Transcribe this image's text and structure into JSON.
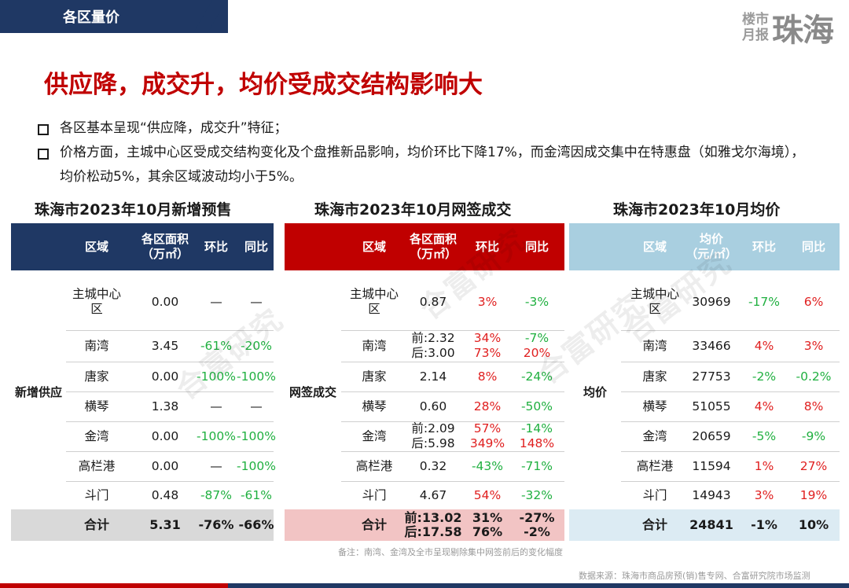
{
  "header": {
    "section": "各区量价",
    "brand_small_1": "楼市",
    "brand_small_2": "月报",
    "brand_big": "珠海"
  },
  "title": "供应降，成交升，均价受成交结构影响大",
  "bullets": [
    "各区基本呈现“供应降，成交升”特征；",
    "价格方面，主城中心区受成交结构变化及个盘推新品影响，均价环比下降17%，而金湾因成交集中在特惠盘（如雅戈尔海境），均价松动5%，其余区域波动均小于5%。"
  ],
  "tables": {
    "supply": {
      "title": "珠海市2023年10月新增预售",
      "headers": [
        "区域",
        "各区面积\n（万㎡）",
        "环比",
        "同比"
      ],
      "side_label": "新增供应",
      "rows": [
        {
          "area": "主城中心\n区",
          "value": "0.00",
          "mom": "—",
          "yoy": "—",
          "mom_c": "",
          "yoy_c": ""
        },
        {
          "area": "南湾",
          "value": "3.45",
          "mom": "-61%",
          "yoy": "-20%",
          "mom_c": "green",
          "yoy_c": "green"
        },
        {
          "area": "唐家",
          "value": "0.00",
          "mom": "-100%",
          "yoy": "-100%",
          "mom_c": "green",
          "yoy_c": "green"
        },
        {
          "area": "横琴",
          "value": "1.38",
          "mom": "—",
          "yoy": "—",
          "mom_c": "",
          "yoy_c": ""
        },
        {
          "area": "金湾",
          "value": "0.00",
          "mom": "-100%",
          "yoy": "-100%",
          "mom_c": "green",
          "yoy_c": "green"
        },
        {
          "area": "高栏港",
          "value": "0.00",
          "mom": "—",
          "yoy": "-100%",
          "mom_c": "",
          "yoy_c": "green"
        },
        {
          "area": "斗门",
          "value": "0.48",
          "mom": "-87%",
          "yoy": "-61%",
          "mom_c": "green",
          "yoy_c": "green"
        }
      ],
      "total": {
        "label": "合计",
        "value": "5.31",
        "mom": "-76%",
        "yoy": "-66%"
      }
    },
    "sales": {
      "title": "珠海市2023年10月网签成交",
      "headers": [
        "区域",
        "各区面积\n（万㎡）",
        "环比",
        "同比"
      ],
      "side_label": "网签成交",
      "rows": [
        {
          "area": "主城中心\n区",
          "value": "0.87",
          "mom": "3%",
          "yoy": "-3%",
          "mom_c": "red",
          "yoy_c": "green"
        },
        {
          "area": "南湾",
          "value": "前:2.32\n后:3.00",
          "mom": "34%\n73%",
          "yoy": "-7%\n20%",
          "mom_c": "red",
          "yoy_c": "mixed1"
        },
        {
          "area": "唐家",
          "value": "2.14",
          "mom": "8%",
          "yoy": "-24%",
          "mom_c": "red",
          "yoy_c": "green"
        },
        {
          "area": "横琴",
          "value": "0.60",
          "mom": "28%",
          "yoy": "-50%",
          "mom_c": "red",
          "yoy_c": "green"
        },
        {
          "area": "金湾",
          "value": "前:2.09\n后:5.98",
          "mom": "57%\n349%",
          "yoy": "-14%\n148%",
          "mom_c": "red",
          "yoy_c": "mixed1"
        },
        {
          "area": "高栏港",
          "value": "0.32",
          "mom": "-43%",
          "yoy": "-71%",
          "mom_c": "green",
          "yoy_c": "green"
        },
        {
          "area": "斗门",
          "value": "4.67",
          "mom": "54%",
          "yoy": "-32%",
          "mom_c": "red",
          "yoy_c": "green"
        }
      ],
      "total": {
        "label": "合计",
        "value": "前:13.02\n后:17.58",
        "mom": "31%\n76%",
        "yoy": "-27%\n-2%"
      }
    },
    "price": {
      "title": "珠海市2023年10月均价",
      "headers": [
        "区域",
        "均价\n（元/㎡）",
        "环比",
        "同比"
      ],
      "side_label": "均价",
      "rows": [
        {
          "area": "主城中心\n区",
          "value": "30969",
          "mom": "-17%",
          "yoy": "6%",
          "mom_c": "green",
          "yoy_c": "red"
        },
        {
          "area": "南湾",
          "value": "33466",
          "mom": "4%",
          "yoy": "3%",
          "mom_c": "red",
          "yoy_c": "red"
        },
        {
          "area": "唐家",
          "value": "27753",
          "mom": "-2%",
          "yoy": "-0.2%",
          "mom_c": "green",
          "yoy_c": "green"
        },
        {
          "area": "横琴",
          "value": "51055",
          "mom": "4%",
          "yoy": "8%",
          "mom_c": "red",
          "yoy_c": "red"
        },
        {
          "area": "金湾",
          "value": "20659",
          "mom": "-5%",
          "yoy": "-9%",
          "mom_c": "green",
          "yoy_c": "green"
        },
        {
          "area": "高栏港",
          "value": "11594",
          "mom": "1%",
          "yoy": "27%",
          "mom_c": "red",
          "yoy_c": "red"
        },
        {
          "area": "斗门",
          "value": "14943",
          "mom": "3%",
          "yoy": "19%",
          "mom_c": "red",
          "yoy_c": "red"
        }
      ],
      "total": {
        "label": "合计",
        "value": "24841",
        "mom": "-1%",
        "yoy": "10%"
      }
    }
  },
  "watermark": "合富研究",
  "note": "备注：南湾、金湾及全市呈现剔除集中网签前后的变化幅度",
  "source": "数据来源：珠海市商品房预(销)售专网、合富研究院市场监测",
  "colors": {
    "navy": "#1f3864",
    "red_header": "#c00000",
    "blue_header": "#a9cfe0",
    "total_gray": "#d9d9d9",
    "total_pink": "#f2c4c4",
    "total_blue": "#dcebf3"
  }
}
